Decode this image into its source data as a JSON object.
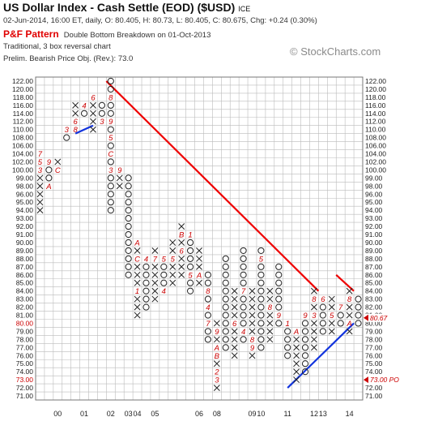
{
  "header": {
    "title": "US Dollar Index - Cash Settle (EOD) ($USD)",
    "exchange": "ICE",
    "quote_line": "02-Jun-2014, 16:00 ET, daily, O: 80.405, H: 80.73, L: 80.405, C: 80.675, Chg: +0.24 (0.30%)",
    "pattern_name": "P&F Pattern",
    "pattern_desc": "Double Bottom Breakdown on 01-Oct-2013",
    "method": "Traditional, 3 box reversal chart",
    "price_objective": "Prelim. Bearish Price Obj. (Rev.): 73.0"
  },
  "brand": "© StockCharts.com",
  "colors": {
    "x": "#222222",
    "o": "#222222",
    "month": "#cc0000",
    "down_trend": "#ee0000",
    "up_trend": "#1133dd",
    "grid": "#bbbbbb",
    "grid_dark": "#777777",
    "price_marker": "#cc0000"
  },
  "chart_data": {
    "type": "point-and-figure",
    "box_size": 1,
    "reversal": 3,
    "ylim": [
      71,
      122
    ],
    "y_ticks": [
      71,
      72,
      73,
      74,
      75,
      76,
      77,
      78,
      79,
      80,
      81,
      82,
      83,
      84,
      85,
      86,
      87,
      88,
      89,
      90,
      91,
      92,
      93,
      94,
      95,
      96,
      98,
      99,
      100,
      102,
      104,
      106,
      108,
      110,
      112,
      114,
      116,
      118,
      120,
      122
    ],
    "x_labels": [
      {
        "col": 2,
        "label": "00"
      },
      {
        "col": 5,
        "label": "01"
      },
      {
        "col": 8,
        "label": "02"
      },
      {
        "col": 10,
        "label": "03"
      },
      {
        "col": 11,
        "label": "04"
      },
      {
        "col": 13,
        "label": "05"
      },
      {
        "col": 18,
        "label": "06"
      },
      {
        "col": 20,
        "label": "08"
      },
      {
        "col": 24,
        "label": "09"
      },
      {
        "col": 25,
        "label": "10"
      },
      {
        "col": 28,
        "label": "11"
      },
      {
        "col": 31,
        "label": "12"
      },
      {
        "col": 32,
        "label": "13"
      },
      {
        "col": 35,
        "label": "14"
      }
    ],
    "columns": [
      {
        "type": "X",
        "bottom": 94,
        "top": 104
      },
      {
        "type": "O",
        "bottom": 98,
        "top": 103
      },
      {
        "type": "X",
        "bottom": 100,
        "top": 103
      },
      {
        "type": "O",
        "bottom": 108,
        "top": 111
      },
      {
        "type": "X",
        "bottom": 110,
        "top": 117
      },
      {
        "type": "O",
        "bottom": 114,
        "top": 116
      },
      {
        "type": "X",
        "bottom": 109,
        "top": 118
      },
      {
        "type": "O",
        "bottom": 111,
        "top": 117
      },
      {
        "type": "O",
        "bottom": 94,
        "top": 122
      },
      {
        "type": "X",
        "bottom": 98,
        "top": 100
      },
      {
        "type": "O",
        "bottom": 86,
        "top": 99
      },
      {
        "type": "X",
        "bottom": 81,
        "top": 90
      },
      {
        "type": "O",
        "bottom": 82,
        "top": 88
      },
      {
        "type": "X",
        "bottom": 83,
        "top": 89
      },
      {
        "type": "O",
        "bottom": 84,
        "top": 88
      },
      {
        "type": "X",
        "bottom": 85,
        "top": 90
      },
      {
        "type": "X",
        "bottom": 86,
        "top": 92
      },
      {
        "type": "O",
        "bottom": 84,
        "top": 91
      },
      {
        "type": "X",
        "bottom": 85,
        "top": 89
      },
      {
        "type": "O",
        "bottom": 78,
        "top": 86
      },
      {
        "type": "X",
        "bottom": 72,
        "top": 80
      },
      {
        "type": "O",
        "bottom": 77,
        "top": 88
      },
      {
        "type": "X",
        "bottom": 76,
        "top": 84
      },
      {
        "type": "O",
        "bottom": 78,
        "top": 89
      },
      {
        "type": "X",
        "bottom": 76,
        "top": 84
      },
      {
        "type": "O",
        "bottom": 77,
        "top": 89
      },
      {
        "type": "X",
        "bottom": 78,
        "top": 84
      },
      {
        "type": "O",
        "bottom": 80,
        "top": 87
      },
      {
        "type": "O",
        "bottom": 76,
        "top": 80
      },
      {
        "type": "X",
        "bottom": 73,
        "top": 79
      },
      {
        "type": "O",
        "bottom": 74,
        "top": 81
      },
      {
        "type": "X",
        "bottom": 77,
        "top": 84
      },
      {
        "type": "O",
        "bottom": 79,
        "top": 83
      },
      {
        "type": "X",
        "bottom": 79,
        "top": 83
      },
      {
        "type": "O",
        "bottom": 80,
        "top": 82
      },
      {
        "type": "X",
        "bottom": 79,
        "top": 84
      },
      {
        "type": "O",
        "bottom": 80,
        "top": 83
      }
    ],
    "month_markers": [
      {
        "col": 0,
        "price": 104,
        "label": "7"
      },
      {
        "col": 0,
        "price": 102,
        "label": "5"
      },
      {
        "col": 0,
        "price": 100,
        "label": "3"
      },
      {
        "col": 0,
        "price": 97,
        "label": "2"
      },
      {
        "col": 1,
        "price": 102,
        "label": "9"
      },
      {
        "col": 1,
        "price": 98,
        "label": "A"
      },
      {
        "col": 2,
        "price": 100,
        "label": "C"
      },
      {
        "col": 3,
        "price": 110,
        "label": "3"
      },
      {
        "col": 3,
        "price": 111,
        "label": "4"
      },
      {
        "col": 4,
        "price": 112,
        "label": "6"
      },
      {
        "col": 4,
        "price": 110,
        "label": "8"
      },
      {
        "col": 5,
        "price": 116,
        "label": "4"
      },
      {
        "col": 6,
        "price": 118,
        "label": "6"
      },
      {
        "col": 7,
        "price": 118,
        "label": "5"
      },
      {
        "col": 7,
        "price": 112,
        "label": "3"
      },
      {
        "col": 8,
        "price": 118,
        "label": "8"
      },
      {
        "col": 8,
        "price": 112,
        "label": "9"
      },
      {
        "col": 8,
        "price": 108,
        "label": "5"
      },
      {
        "col": 8,
        "price": 104,
        "label": "C"
      },
      {
        "col": 8,
        "price": 100,
        "label": "3"
      },
      {
        "col": 9,
        "price": 100,
        "label": "9"
      },
      {
        "col": 11,
        "price": 90,
        "label": "A"
      },
      {
        "col": 11,
        "price": 88,
        "label": "C"
      },
      {
        "col": 11,
        "price": 84,
        "label": "1"
      },
      {
        "col": 12,
        "price": 88,
        "label": "4"
      },
      {
        "col": 13,
        "price": 88,
        "label": "7"
      },
      {
        "col": 14,
        "price": 88,
        "label": "5"
      },
      {
        "col": 14,
        "price": 84,
        "label": "4"
      },
      {
        "col": 15,
        "price": 88,
        "label": "5"
      },
      {
        "col": 16,
        "price": 91,
        "label": "B"
      },
      {
        "col": 16,
        "price": 89,
        "label": "6"
      },
      {
        "col": 17,
        "price": 91,
        "label": "1"
      },
      {
        "col": 17,
        "price": 86,
        "label": "5"
      },
      {
        "col": 18,
        "price": 86,
        "label": "A"
      },
      {
        "col": 19,
        "price": 84,
        "label": "8"
      },
      {
        "col": 19,
        "price": 82,
        "label": "4"
      },
      {
        "col": 19,
        "price": 80,
        "label": "7"
      },
      {
        "col": 20,
        "price": 79,
        "label": "9"
      },
      {
        "col": 20,
        "price": 77,
        "label": "A"
      },
      {
        "col": 20,
        "price": 76,
        "label": "B"
      },
      {
        "col": 20,
        "price": 74,
        "label": "2"
      },
      {
        "col": 20,
        "price": 73,
        "label": "3"
      },
      {
        "col": 21,
        "price": 73,
        "label": "8"
      },
      {
        "col": 22,
        "price": 80,
        "label": "6"
      },
      {
        "col": 23,
        "price": 84,
        "label": "7"
      },
      {
        "col": 23,
        "price": 79,
        "label": "4"
      },
      {
        "col": 24,
        "price": 89,
        "label": "3"
      },
      {
        "col": 24,
        "price": 85,
        "label": "6"
      },
      {
        "col": 24,
        "price": 78,
        "label": "8"
      },
      {
        "col": 24,
        "price": 77,
        "label": "9"
      },
      {
        "col": 25,
        "price": 88,
        "label": "5"
      },
      {
        "col": 26,
        "price": 82,
        "label": "8"
      },
      {
        "col": 26,
        "price": 76,
        "label": "C"
      },
      {
        "col": 26,
        "price": 77,
        "label": "2"
      },
      {
        "col": 27,
        "price": 81,
        "label": "9"
      },
      {
        "col": 27,
        "price": 77,
        "label": "5"
      },
      {
        "col": 28,
        "price": 80,
        "label": "1"
      },
      {
        "col": 28,
        "price": 75,
        "label": "4"
      },
      {
        "col": 28,
        "price": 74,
        "label": "5"
      },
      {
        "col": 29,
        "price": 80,
        "label": "2"
      },
      {
        "col": 29,
        "price": 79,
        "label": "A"
      },
      {
        "col": 30,
        "price": 84,
        "label": "7"
      },
      {
        "col": 30,
        "price": 81,
        "label": "9"
      },
      {
        "col": 31,
        "price": 83,
        "label": "8"
      },
      {
        "col": 31,
        "price": 81,
        "label": "3"
      },
      {
        "col": 32,
        "price": 83,
        "label": "6"
      },
      {
        "col": 33,
        "price": 81,
        "label": "5"
      },
      {
        "col": 34,
        "price": 82,
        "label": "7"
      },
      {
        "col": 35,
        "price": 83,
        "label": "8"
      },
      {
        "col": 35,
        "price": 80,
        "label": "A"
      },
      {
        "col": 36,
        "price": 79,
        "label": "5"
      }
    ],
    "trend_lines": [
      {
        "kind": "bearish resistance",
        "from": {
          "col": 7.5,
          "price": 122
        },
        "to": {
          "col": 31.5,
          "price": 84
        }
      },
      {
        "kind": "bearish resistance",
        "from": {
          "col": 33.5,
          "price": 86
        },
        "to": {
          "col": 35.5,
          "price": 84
        }
      },
      {
        "kind": "bullish support",
        "from": {
          "col": 4,
          "price": 109
        },
        "to": {
          "col": 6,
          "price": 111
        }
      },
      {
        "kind": "bullish support",
        "from": {
          "col": 28,
          "price": 72
        },
        "to": {
          "col": 35.5,
          "price": 80
        }
      }
    ],
    "right_markers": [
      {
        "price": 80.67,
        "label": "80.67"
      },
      {
        "price": 73,
        "label": "73.00 PO"
      }
    ],
    "left_markers": [
      {
        "price": 80,
        "label": "80.00"
      },
      {
        "price": 73,
        "label": "73.00"
      }
    ]
  }
}
